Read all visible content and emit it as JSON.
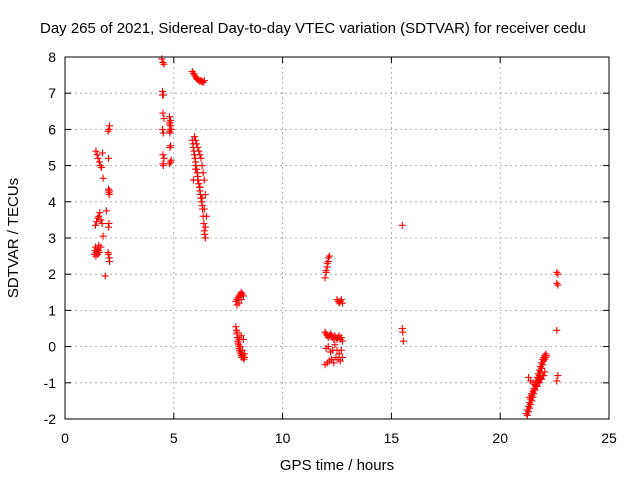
{
  "chart_data": {
    "type": "scatter",
    "title": "Day 265 of 2021, Sidereal Day-to-day VTEC variation (SDTVAR) for receiver cedu",
    "xlabel": "GPS time / hours",
    "ylabel": "SDTVAR / TECUs",
    "xlim": [
      0,
      25
    ],
    "ylim": [
      -2,
      8
    ],
    "x_ticks": [
      0,
      5,
      10,
      15,
      20,
      25
    ],
    "y_ticks": [
      -2,
      -1,
      0,
      1,
      2,
      3,
      4,
      5,
      6,
      7,
      8
    ],
    "grid": true,
    "marker": "+",
    "color": "#ff0000",
    "series": [
      {
        "name": "SDTVAR",
        "x": [
          1.35,
          1.38,
          1.4,
          1.42,
          1.45,
          1.48,
          1.5,
          1.52,
          1.55,
          1.58,
          1.4,
          1.45,
          1.5,
          1.55,
          1.6,
          1.65,
          1.7,
          1.42,
          1.48,
          1.52,
          1.58,
          1.62,
          1.68,
          1.72,
          1.65,
          1.75,
          1.85,
          1.75,
          1.9,
          2.0,
          2.02,
          2.05,
          1.98,
          2.03,
          2.0,
          2.05,
          1.98,
          2.02,
          2.0,
          2.03,
          2.05,
          2.0,
          2.02,
          2.0,
          4.45,
          4.5,
          4.55,
          4.48,
          4.52,
          4.5,
          4.55,
          4.48,
          4.52,
          4.5,
          4.55,
          4.5,
          4.48,
          4.52,
          4.8,
          4.82,
          4.85,
          4.88,
          4.8,
          4.85,
          4.82,
          4.85,
          4.8,
          4.88,
          4.85,
          4.82,
          4.85,
          4.8,
          5.85,
          5.9,
          5.95,
          6.0,
          6.05,
          6.1,
          6.15,
          6.2,
          6.25,
          6.3,
          6.35,
          6.4,
          5.85,
          5.88,
          5.9,
          5.92,
          5.95,
          5.98,
          6.0,
          6.02,
          6.05,
          6.08,
          6.1,
          6.12,
          6.15,
          6.18,
          6.2,
          6.22,
          6.25,
          6.28,
          6.3,
          6.32,
          6.35,
          6.38,
          6.4,
          6.42,
          6.45,
          5.9,
          5.95,
          6.0,
          6.05,
          6.1,
          6.15,
          6.2,
          6.25,
          6.3,
          6.35,
          6.4,
          6.45,
          6.5,
          6.0,
          6.1,
          6.2,
          6.3,
          6.4,
          6.45,
          7.85,
          7.9,
          7.95,
          8.0,
          8.05,
          8.1,
          8.15,
          8.2,
          7.9,
          8.0,
          8.1,
          7.85,
          7.88,
          7.9,
          7.92,
          7.95,
          7.98,
          8.0,
          8.02,
          8.05,
          8.08,
          8.1,
          8.12,
          8.15,
          8.18,
          8.2,
          8.22,
          8.25,
          7.95,
          8.05,
          8.15,
          8.25,
          8.1,
          8.2,
          7.9,
          8.0,
          11.95,
          12.0,
          12.05,
          12.1,
          12.15,
          12.0,
          12.05,
          12.1,
          11.95,
          12.0,
          12.05,
          12.1,
          12.15,
          12.2,
          12.25,
          12.3,
          12.35,
          12.4,
          12.45,
          12.5,
          12.55,
          12.6,
          12.65,
          12.7,
          12.75,
          11.95,
          12.05,
          12.15,
          12.25,
          12.35,
          12.45,
          12.55,
          12.65,
          12.75,
          12.0,
          12.1,
          12.2,
          12.3,
          12.4,
          12.5,
          12.6,
          12.7,
          12.5,
          12.55,
          12.6,
          12.65,
          12.7,
          12.75,
          15.5,
          15.5,
          15.52,
          15.55,
          21.2,
          21.25,
          21.3,
          21.35,
          21.4,
          21.45,
          21.5,
          21.55,
          21.6,
          21.65,
          21.7,
          21.75,
          21.8,
          21.85,
          21.9,
          21.95,
          22.0,
          22.05,
          22.1,
          21.25,
          21.3,
          21.35,
          21.4,
          21.45,
          21.5,
          21.55,
          21.6,
          21.65,
          21.7,
          21.75,
          21.8,
          21.85,
          21.9,
          21.95,
          22.0,
          22.05,
          22.1,
          22.12,
          21.3,
          21.4,
          21.5,
          21.6,
          21.7,
          21.8,
          21.9,
          22.0,
          21.35,
          21.45,
          21.55,
          21.65,
          21.75,
          21.85,
          21.95,
          22.05,
          22.6,
          22.65,
          22.6,
          22.65,
          22.6,
          22.65,
          22.6
        ],
        "y": [
          2.55,
          2.65,
          2.75,
          2.5,
          2.6,
          2.7,
          2.55,
          2.65,
          2.8,
          2.6,
          3.35,
          3.45,
          3.55,
          3.6,
          3.7,
          3.5,
          3.4,
          5.4,
          5.3,
          5.2,
          5.1,
          5.0,
          4.95,
          5.35,
          2.75,
          3.05,
          1.95,
          4.65,
          3.75,
          5.2,
          6.0,
          6.1,
          5.95,
          2.45,
          2.55,
          2.35,
          2.6,
          3.4,
          3.3,
          4.2,
          4.3,
          4.35,
          4.25,
          4.3,
          7.95,
          7.85,
          7.8,
          7.05,
          6.95,
          6.45,
          6.3,
          6.0,
          5.9,
          5.3,
          5.2,
          5.05,
          6.95,
          5.0,
          6.35,
          6.2,
          6.1,
          6.0,
          5.95,
          5.55,
          5.5,
          5.1,
          5.05,
          5.15,
          6.25,
          5.9,
          6.0,
          6.15,
          7.6,
          7.55,
          7.5,
          7.45,
          7.4,
          7.38,
          7.35,
          7.33,
          7.35,
          7.32,
          7.3,
          7.35,
          5.7,
          5.6,
          5.5,
          5.4,
          5.3,
          5.2,
          5.1,
          5.0,
          4.9,
          4.8,
          4.7,
          4.6,
          4.5,
          4.4,
          4.3,
          4.2,
          4.1,
          4.0,
          3.9,
          3.8,
          3.6,
          3.4,
          3.2,
          3.1,
          3.0,
          4.6,
          5.8,
          5.7,
          5.6,
          5.5,
          5.4,
          5.3,
          5.2,
          5.0,
          4.8,
          4.6,
          4.2,
          3.6,
          4.9,
          4.6,
          4.4,
          4.1,
          3.8,
          3.3,
          1.25,
          1.3,
          1.35,
          1.4,
          1.45,
          1.5,
          1.45,
          1.4,
          1.15,
          1.2,
          1.3,
          0.55,
          0.45,
          0.35,
          0.25,
          0.15,
          0.05,
          -0.05,
          -0.1,
          -0.15,
          -0.2,
          -0.25,
          -0.3,
          -0.2,
          -0.25,
          -0.3,
          -0.35,
          -0.3,
          0.1,
          0.0,
          -0.1,
          -0.2,
          0.3,
          0.2,
          0.4,
          0.2,
          1.9,
          2.05,
          2.2,
          2.35,
          2.5,
          2.1,
          2.3,
          2.45,
          0.4,
          0.35,
          0.3,
          0.25,
          0.3,
          0.35,
          0.3,
          0.25,
          0.2,
          0.3,
          0.25,
          0.2,
          0.25,
          0.3,
          0.2,
          0.25,
          0.15,
          -0.5,
          -0.45,
          -0.4,
          -0.35,
          -0.45,
          -0.3,
          -0.35,
          -0.4,
          -0.3,
          -0.05,
          0.0,
          -0.15,
          -0.1,
          0.05,
          -0.1,
          -0.2,
          -0.1,
          1.3,
          1.25,
          1.2,
          1.25,
          1.3,
          1.2,
          3.35,
          0.5,
          0.4,
          0.15,
          -1.85,
          -1.75,
          -1.65,
          -1.55,
          -1.45,
          -1.35,
          -1.25,
          -1.15,
          -1.05,
          -0.95,
          -0.85,
          -0.75,
          -0.65,
          -0.55,
          -0.45,
          -0.35,
          -0.3,
          -0.25,
          -0.2,
          -1.9,
          -1.8,
          -1.7,
          -1.6,
          -1.5,
          -1.4,
          -1.3,
          -1.2,
          -1.1,
          -1.0,
          -0.9,
          -0.8,
          -0.7,
          -0.6,
          -0.5,
          -0.4,
          -0.35,
          -0.3,
          -0.25,
          -0.85,
          -0.95,
          -1.0,
          -1.05,
          -1.1,
          -1.0,
          -0.9,
          -0.8,
          -1.4,
          -1.3,
          -1.2,
          -1.1,
          -1.0,
          -0.9,
          -0.8,
          -0.7,
          2.05,
          2.0,
          1.75,
          1.7,
          0.45,
          -0.8,
          -0.95
        ]
      }
    ]
  }
}
